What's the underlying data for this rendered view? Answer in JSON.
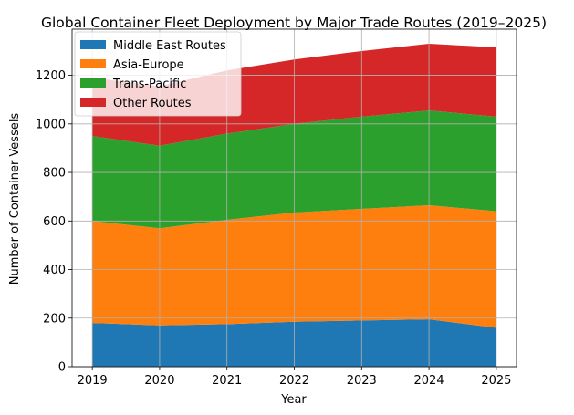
{
  "chart_data": {
    "type": "area",
    "stacked": true,
    "title": "Global Container Fleet Deployment by Major Trade Routes (2019–2025)",
    "xlabel": "Year",
    "ylabel": "Number of Container Vessels",
    "x": [
      2019,
      2020,
      2021,
      2022,
      2023,
      2024,
      2025
    ],
    "ylim": [
      0,
      1390
    ],
    "yticks": [
      0,
      200,
      400,
      600,
      800,
      1000,
      1200
    ],
    "grid": true,
    "legend_position": "upper-left",
    "series": [
      {
        "name": "Middle East Routes",
        "color": "#1f77b4",
        "values": [
          180,
          170,
          175,
          185,
          190,
          195,
          160
        ]
      },
      {
        "name": "Asia-Europe",
        "color": "#ff7f0e",
        "values": [
          420,
          400,
          430,
          450,
          460,
          470,
          480
        ]
      },
      {
        "name": "Trans-Pacific",
        "color": "#2ca02c",
        "values": [
          350,
          340,
          355,
          365,
          380,
          390,
          390
        ]
      },
      {
        "name": "Other Routes",
        "color": "#d62728",
        "values": [
          240,
          245,
          260,
          265,
          270,
          275,
          285
        ]
      }
    ]
  }
}
